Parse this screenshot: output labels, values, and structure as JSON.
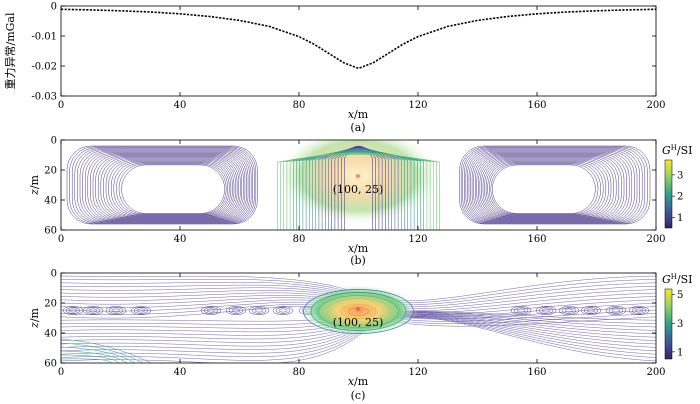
{
  "chart_data": [
    {
      "id": "a",
      "type": "line",
      "caption": "(a)",
      "ylabel": "重力异常/mGal",
      "xlabel_italic": "x",
      "xlabel_unit": "/m",
      "xlim": [
        0,
        200
      ],
      "ylim": [
        -0.03,
        0
      ],
      "xticks": [
        "0",
        "40",
        "80",
        "120",
        "160",
        "200"
      ],
      "yticks": [
        "0",
        "-0.01",
        "-0.02",
        "-0.03"
      ],
      "series": [
        {
          "name": "gravity anomaly",
          "x": [
            0,
            10,
            20,
            30,
            40,
            50,
            60,
            70,
            80,
            85,
            90,
            95,
            100,
            105,
            110,
            115,
            120,
            130,
            140,
            150,
            160,
            170,
            180,
            190,
            200
          ],
          "y": [
            -0.0011,
            -0.0013,
            -0.0016,
            -0.002,
            -0.0026,
            -0.0035,
            -0.0048,
            -0.0068,
            -0.0102,
            -0.0127,
            -0.0158,
            -0.0189,
            -0.0208,
            -0.0189,
            -0.0158,
            -0.0127,
            -0.0102,
            -0.0068,
            -0.0048,
            -0.0035,
            -0.0026,
            -0.002,
            -0.0016,
            -0.0013,
            -0.0011
          ]
        }
      ]
    },
    {
      "id": "b",
      "type": "contour",
      "caption": "(b)",
      "ylabel_italic": "z",
      "ylabel_unit": "/m",
      "xlabel_italic": "x",
      "xlabel_unit": "/m",
      "xlim": [
        0,
        200
      ],
      "ylim": [
        0,
        60
      ],
      "xticks": [
        "0",
        "40",
        "80",
        "120",
        "160",
        "200"
      ],
      "yticks": [
        "0",
        "20",
        "40",
        "60"
      ],
      "colorbar_label": "G",
      "colorbar_sup": "H",
      "colorbar_unit": "/SI",
      "colorbar_range": [
        0.5,
        3.7
      ],
      "colorbar_ticks": [
        "3",
        "2",
        "1"
      ],
      "source_point": {
        "x": 100,
        "z": 25,
        "label": "(100, 25)"
      }
    },
    {
      "id": "c",
      "type": "contour",
      "caption": "(c)",
      "ylabel_italic": "z",
      "ylabel_unit": "/m",
      "xlabel_italic": "x",
      "xlabel_unit": "/m",
      "xlim": [
        0,
        200
      ],
      "ylim": [
        0,
        60
      ],
      "xticks": [
        "0",
        "40",
        "80",
        "120",
        "160",
        "200"
      ],
      "yticks": [
        "0",
        "20",
        "40",
        "60"
      ],
      "colorbar_label": "G",
      "colorbar_sup": "H",
      "colorbar_unit": "/SI",
      "colorbar_range": [
        0.5,
        5.4
      ],
      "colorbar_ticks": [
        "5",
        "3",
        "1"
      ],
      "source_point": {
        "x": 100,
        "z": 25,
        "label": "(100, 25)"
      }
    }
  ],
  "colors": {
    "low": "#3b1f6e",
    "mid": "#1f9e89",
    "high": "#fde725",
    "line": "#000000",
    "source_marker": "#e8434b"
  }
}
